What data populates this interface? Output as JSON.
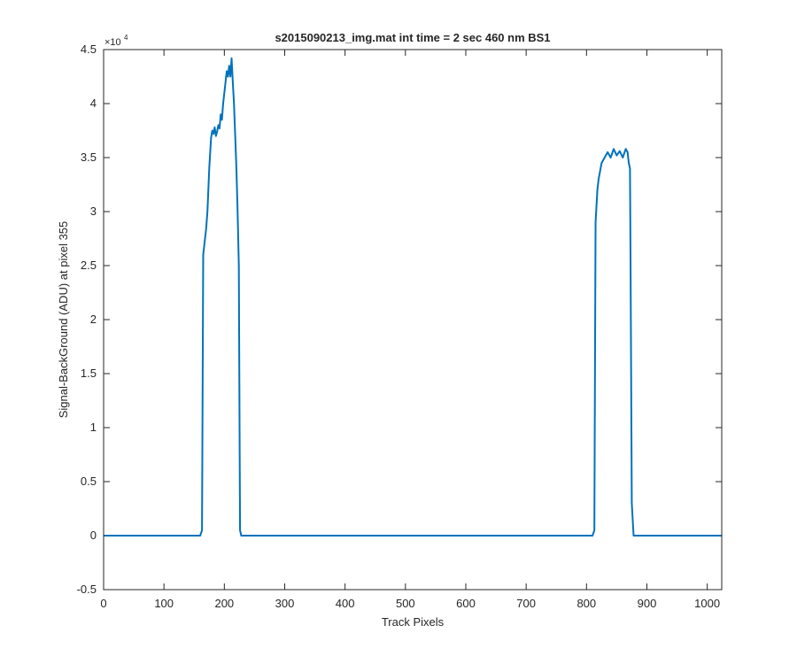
{
  "chart_data": {
    "type": "line",
    "title": "s2015090213_img.mat int time = 2 sec  460 nm BS1",
    "xlabel": "Track Pixels",
    "ylabel": "Signal-BackGround (ADU) at pixel 355",
    "xlim": [
      0,
      1024
    ],
    "ylim": [
      -0.5,
      4.5
    ],
    "y_multiplier_base": "×10",
    "y_multiplier_exp": "4",
    "xticks": [
      "0",
      "100",
      "200",
      "300",
      "400",
      "500",
      "600",
      "700",
      "800",
      "900",
      "1000"
    ],
    "yticks": [
      "-0.5",
      "0",
      "0.5",
      "1",
      "1.5",
      "2",
      "2.5",
      "3",
      "3.5",
      "4",
      "4.5"
    ],
    "grid": false,
    "line_color": "#0072BD",
    "series": [
      {
        "x": [
          0,
          100,
          160,
          163,
          165,
          168,
          170,
          172,
          175,
          178,
          180,
          182,
          184,
          186,
          188,
          190,
          192,
          194,
          196,
          198,
          200,
          202,
          204,
          206,
          208,
          210,
          212,
          214,
          216,
          218,
          220,
          222,
          224,
          226,
          228,
          232,
          240,
          300,
          400,
          500,
          600,
          700,
          805,
          810,
          813,
          815,
          818,
          820,
          825,
          830,
          835,
          840,
          845,
          850,
          855,
          860,
          865,
          868,
          870,
          872,
          873,
          875,
          878,
          885,
          950,
          1024
        ],
        "y": [
          0.0,
          0.0,
          0.0,
          0.05,
          2.6,
          2.75,
          2.85,
          3.0,
          3.4,
          3.68,
          3.75,
          3.72,
          3.78,
          3.7,
          3.74,
          3.8,
          3.77,
          3.9,
          3.85,
          4.0,
          4.1,
          4.2,
          4.3,
          4.25,
          4.35,
          4.25,
          4.42,
          4.2,
          4.0,
          3.7,
          3.4,
          3.0,
          2.5,
          0.05,
          0.0,
          0.0,
          0.0,
          0.0,
          0.0,
          0.0,
          0.0,
          0.0,
          0.0,
          0.0,
          0.05,
          2.9,
          3.2,
          3.3,
          3.45,
          3.5,
          3.55,
          3.5,
          3.58,
          3.52,
          3.56,
          3.5,
          3.58,
          3.55,
          3.45,
          3.4,
          2.5,
          0.3,
          0.0,
          0.0,
          0.0,
          0.0
        ]
      }
    ]
  }
}
